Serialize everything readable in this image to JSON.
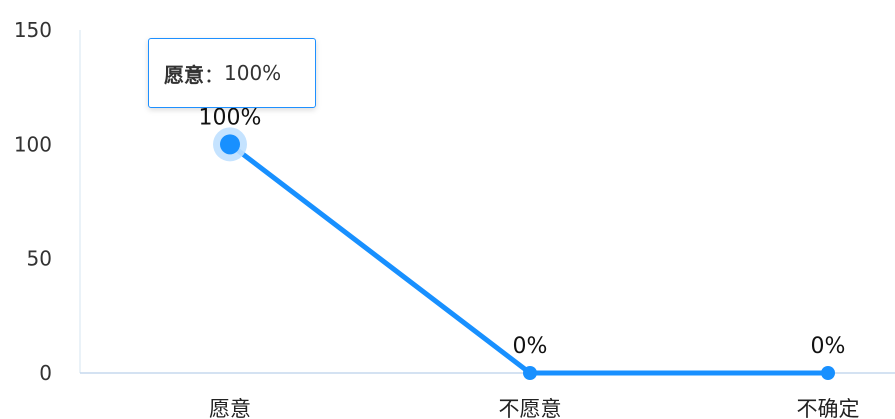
{
  "chart_data": {
    "type": "line",
    "categories": [
      "愿意",
      "不愿意",
      "不确定"
    ],
    "series": [
      {
        "values": [
          100,
          0,
          0
        ],
        "data_labels": [
          "100%",
          "0%",
          "0%"
        ]
      }
    ],
    "ylim": [
      0,
      150
    ],
    "yticks": [
      0,
      50,
      100,
      150
    ],
    "color": "#1890ff",
    "grid": false,
    "tooltip": {
      "category": "愿意",
      "separator": "：",
      "value": "100%"
    }
  }
}
